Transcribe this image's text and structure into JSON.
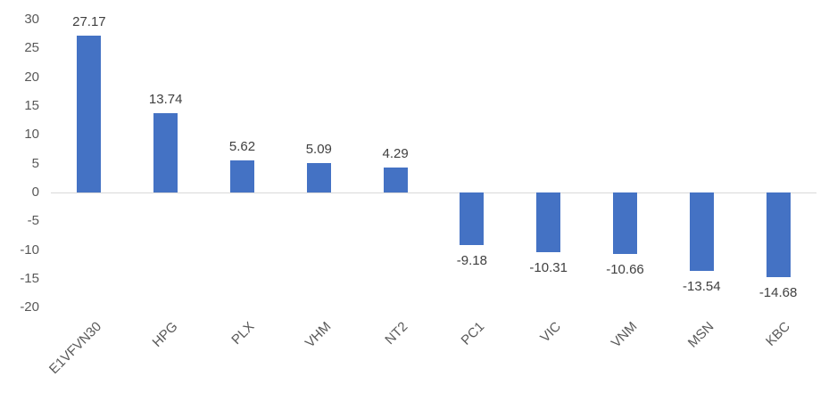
{
  "chart_data": {
    "type": "bar",
    "categories": [
      "E1VFVN30",
      "HPG",
      "PLX",
      "VHM",
      "NT2",
      "PC1",
      "VIC",
      "VNM",
      "MSN",
      "KBC"
    ],
    "values": [
      27.17,
      13.74,
      5.62,
      5.09,
      4.29,
      -9.18,
      -10.31,
      -10.66,
      -13.54,
      -14.68
    ],
    "value_labels": [
      "27.17",
      "13.74",
      "5.62",
      "5.09",
      "4.29",
      "-9.18",
      "-10.31",
      "-10.66",
      "-13.54",
      "-14.68"
    ],
    "title": "",
    "xlabel": "",
    "ylabel": "",
    "ylim": [
      -20,
      30
    ],
    "yticks": [
      30,
      25,
      20,
      15,
      10,
      5,
      0,
      -5,
      -10,
      -15,
      -20
    ],
    "ytick_labels": [
      "30",
      "25",
      "20",
      "15",
      "10",
      "5",
      "0",
      "-5",
      "-10",
      "-15",
      "-20"
    ],
    "grid": false,
    "legend": "none",
    "bar_color": "#4472c4",
    "axis_color": "#d9d9d9",
    "tick_label_color": "#595959",
    "value_label_color": "#404040"
  }
}
